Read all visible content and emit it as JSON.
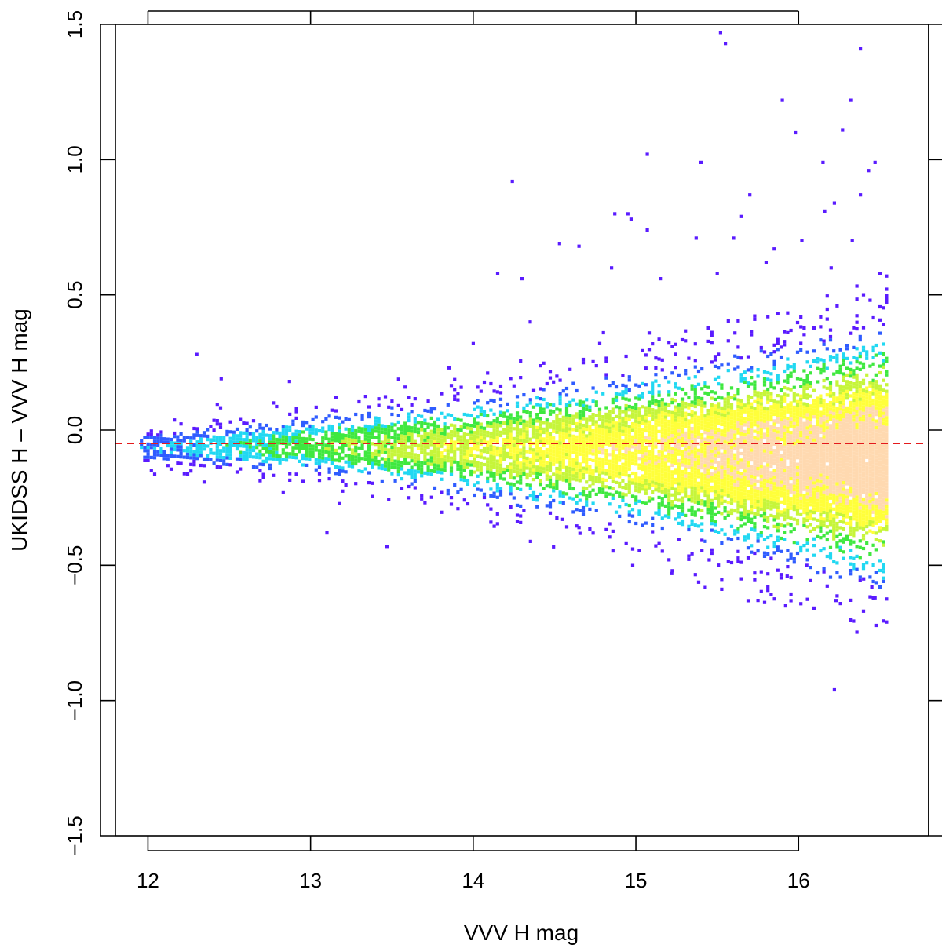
{
  "chart_data": {
    "type": "heatmap",
    "title": "",
    "xlabel": "VVV H mag",
    "ylabel": "UKIDSS H – VVV H mag",
    "xlim": [
      11.8,
      16.8
    ],
    "ylim": [
      -1.5,
      1.5
    ],
    "x_ticks": [
      "12",
      "13",
      "14",
      "15",
      "16"
    ],
    "y_ticks": [
      "−1.5",
      "−1.0",
      "−0.5",
      "0.0",
      "0.5",
      "1.0",
      "1.5"
    ],
    "x_tick_values": [
      12,
      13,
      14,
      15,
      16
    ],
    "y_tick_values": [
      -1.5,
      -1.0,
      -0.5,
      0.0,
      0.5,
      1.0,
      1.5
    ],
    "reference_line": {
      "y": -0.05,
      "style": "dashed",
      "color": "#e41a1c"
    },
    "density_colors": [
      "#5a1bff",
      "#2f5cff",
      "#21d8f2",
      "#3fe83f",
      "#c6f53a",
      "#ffff3a",
      "#ffd9b0"
    ],
    "density_profile": {
      "x_range": [
        11.95,
        16.55
      ],
      "median": [
        {
          "x": 12.0,
          "y": -0.06
        },
        {
          "x": 13.0,
          "y": -0.05
        },
        {
          "x": 14.0,
          "y": -0.06
        },
        {
          "x": 15.0,
          "y": -0.07
        },
        {
          "x": 16.0,
          "y": -0.09
        },
        {
          "x": 16.55,
          "y": -0.1
        }
      ],
      "spread": [
        {
          "x": 12.0,
          "y": 0.04
        },
        {
          "x": 13.0,
          "y": 0.06
        },
        {
          "x": 14.0,
          "y": 0.09
        },
        {
          "x": 15.0,
          "y": 0.13
        },
        {
          "x": 16.0,
          "y": 0.18
        },
        {
          "x": 16.55,
          "y": 0.21
        }
      ]
    },
    "outliers": [
      {
        "x": 15.52,
        "y": 1.47
      },
      {
        "x": 15.55,
        "y": 1.43
      },
      {
        "x": 16.38,
        "y": 1.41
      },
      {
        "x": 15.9,
        "y": 1.22
      },
      {
        "x": 16.32,
        "y": 1.22
      },
      {
        "x": 15.98,
        "y": 1.1
      },
      {
        "x": 16.27,
        "y": 1.11
      },
      {
        "x": 15.07,
        "y": 1.02
      },
      {
        "x": 15.4,
        "y": 0.99
      },
      {
        "x": 16.15,
        "y": 0.99
      },
      {
        "x": 16.47,
        "y": 0.99
      },
      {
        "x": 16.43,
        "y": 0.96
      },
      {
        "x": 14.24,
        "y": 0.92
      },
      {
        "x": 15.7,
        "y": 0.87
      },
      {
        "x": 16.38,
        "y": 0.87
      },
      {
        "x": 16.22,
        "y": 0.84
      },
      {
        "x": 14.87,
        "y": 0.8
      },
      {
        "x": 14.95,
        "y": 0.8
      },
      {
        "x": 15.65,
        "y": 0.79
      },
      {
        "x": 14.97,
        "y": 0.78
      },
      {
        "x": 16.16,
        "y": 0.81
      },
      {
        "x": 15.07,
        "y": 0.74
      },
      {
        "x": 15.37,
        "y": 0.71
      },
      {
        "x": 16.33,
        "y": 0.7
      },
      {
        "x": 14.53,
        "y": 0.69
      },
      {
        "x": 14.65,
        "y": 0.68
      },
      {
        "x": 15.6,
        "y": 0.71
      },
      {
        "x": 15.85,
        "y": 0.67
      },
      {
        "x": 16.02,
        "y": 0.7
      },
      {
        "x": 14.15,
        "y": 0.58
      },
      {
        "x": 14.3,
        "y": 0.56
      },
      {
        "x": 14.85,
        "y": 0.6
      },
      {
        "x": 15.15,
        "y": 0.56
      },
      {
        "x": 15.5,
        "y": 0.58
      },
      {
        "x": 15.8,
        "y": 0.62
      },
      {
        "x": 16.2,
        "y": 0.6
      },
      {
        "x": 16.5,
        "y": 0.58
      },
      {
        "x": 14.0,
        "y": 0.32
      },
      {
        "x": 14.35,
        "y": 0.4
      },
      {
        "x": 14.8,
        "y": 0.36
      },
      {
        "x": 12.3,
        "y": 0.28
      },
      {
        "x": 12.45,
        "y": 0.19
      },
      {
        "x": 12.87,
        "y": 0.18
      },
      {
        "x": 13.85,
        "y": 0.23
      },
      {
        "x": 13.1,
        "y": -0.38
      },
      {
        "x": 13.47,
        "y": -0.43
      },
      {
        "x": 13.6,
        "y": -0.25
      },
      {
        "x": 14.55,
        "y": -0.33
      },
      {
        "x": 14.65,
        "y": -0.36
      },
      {
        "x": 14.94,
        "y": -0.42
      },
      {
        "x": 15.22,
        "y": -0.53
      },
      {
        "x": 15.45,
        "y": -0.48
      },
      {
        "x": 15.93,
        "y": -0.54
      },
      {
        "x": 15.92,
        "y": -0.65
      },
      {
        "x": 16.23,
        "y": -0.63
      },
      {
        "x": 16.45,
        "y": -0.58
      },
      {
        "x": 16.47,
        "y": -0.62
      },
      {
        "x": 16.22,
        "y": -0.96
      },
      {
        "x": 16.05,
        "y": -0.5
      },
      {
        "x": 16.4,
        "y": -0.55
      }
    ]
  }
}
